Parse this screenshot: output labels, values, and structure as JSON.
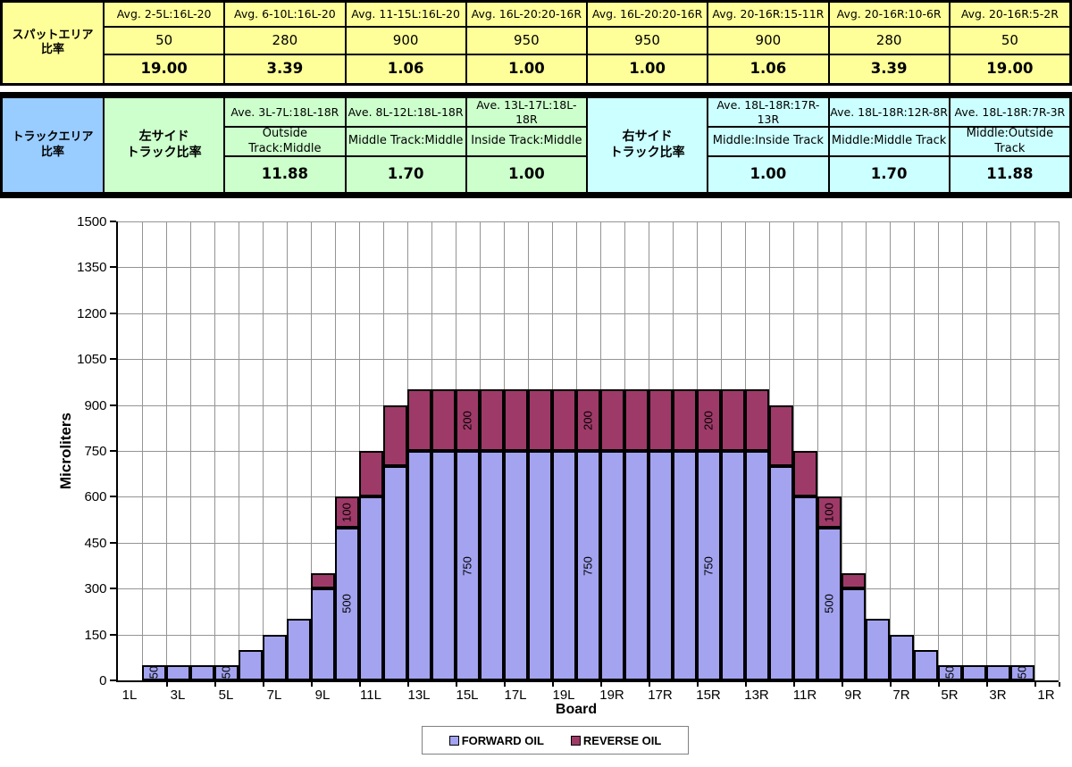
{
  "spat_table": {
    "header_line1": "スパットエリア",
    "header_line2": "比率",
    "columns": [
      {
        "header": "Avg. 2-5L:16L-20",
        "value": "50",
        "ratio": "19.00"
      },
      {
        "header": "Avg. 6-10L:16L-20",
        "value": "280",
        "ratio": "3.39"
      },
      {
        "header": "Avg. 11-15L:16L-20",
        "value": "900",
        "ratio": "1.06"
      },
      {
        "header": "Avg. 16L-20:20-16R",
        "value": "950",
        "ratio": "1.00"
      },
      {
        "header": "Avg. 16L-20:20-16R",
        "value": "950",
        "ratio": "1.00"
      },
      {
        "header": "Avg. 20-16R:15-11R",
        "value": "900",
        "ratio": "1.06"
      },
      {
        "header": "Avg. 20-16R:10-6R",
        "value": "280",
        "ratio": "3.39"
      },
      {
        "header": "Avg. 20-16R:5-2R",
        "value": "50",
        "ratio": "19.00"
      }
    ],
    "bg_color": "#FFFF99"
  },
  "track_table": {
    "header_line1": "トラックエリア",
    "header_line2": "比率",
    "left_group_line1": "左サイド",
    "left_group_line2": "トラック比率",
    "right_group_line1": "右サイド",
    "right_group_line2": "トラック比率",
    "left_columns": [
      {
        "header": "Ave. 3L-7L:18L-18R",
        "label": "Outside Track:Middle",
        "ratio": "11.88"
      },
      {
        "header": "Ave. 8L-12L:18L-18R",
        "label": "Middle Track:Middle",
        "ratio": "1.70"
      },
      {
        "header": "Ave. 13L-17L:18L-18R",
        "label": "Inside Track:Middle",
        "ratio": "1.00"
      }
    ],
    "right_columns": [
      {
        "header": "Ave. 18L-18R:17R-13R",
        "label": "Middle:Inside Track",
        "ratio": "1.00"
      },
      {
        "header": "Ave. 18L-18R:12R-8R",
        "label": "Middle:Middle Track",
        "ratio": "1.70"
      },
      {
        "header": "Ave. 18L-18R:7R-3R",
        "label": "Middle:Outside Track",
        "ratio": "11.88"
      }
    ],
    "header_bg": "#99CCFF",
    "left_bg": "#CCFFCC",
    "right_bg": "#CCFFFF"
  },
  "chart_data": {
    "type": "bar",
    "stacked": true,
    "xlabel": "Board",
    "ylabel": "Microliters",
    "ylim": [
      0,
      1500
    ],
    "ytick_interval": 150,
    "yticks": [
      0,
      150,
      300,
      450,
      600,
      750,
      900,
      1050,
      1200,
      1350,
      1500
    ],
    "grid": "both",
    "legend_position": "bottom",
    "categories": [
      "1L",
      "2L",
      "3L",
      "4L",
      "5L",
      "6L",
      "7L",
      "8L",
      "9L",
      "10L",
      "11L",
      "12L",
      "13L",
      "14L",
      "15L",
      "16L",
      "17L",
      "18L",
      "19L",
      "20",
      "19R",
      "18R",
      "17R",
      "16R",
      "15R",
      "14R",
      "13R",
      "12R",
      "11R",
      "10R",
      "9R",
      "8R",
      "7R",
      "6R",
      "5R",
      "4R",
      "3R",
      "2R",
      "1R"
    ],
    "xtick_labels": [
      "1L",
      "3L",
      "5L",
      "7L",
      "9L",
      "11L",
      "13L",
      "15L",
      "17L",
      "19L",
      "19R",
      "17R",
      "15R",
      "13R",
      "11R",
      "9R",
      "7R",
      "5R",
      "3R",
      "1R"
    ],
    "series": [
      {
        "name": "FORWARD OIL",
        "key": "forward",
        "color": "#A3A3F0",
        "values": [
          0,
          50,
          50,
          50,
          50,
          100,
          150,
          200,
          300,
          500,
          600,
          700,
          750,
          750,
          750,
          750,
          750,
          750,
          750,
          750,
          750,
          750,
          750,
          750,
          750,
          750,
          750,
          700,
          600,
          500,
          300,
          200,
          150,
          100,
          50,
          50,
          50,
          50,
          0
        ]
      },
      {
        "name": "REVERSE OIL",
        "key": "reverse",
        "color": "#9E3A68",
        "values": [
          0,
          0,
          0,
          0,
          0,
          0,
          0,
          0,
          50,
          100,
          150,
          200,
          200,
          200,
          200,
          200,
          200,
          200,
          200,
          200,
          200,
          200,
          200,
          200,
          200,
          200,
          200,
          200,
          150,
          100,
          50,
          0,
          0,
          0,
          0,
          0,
          0,
          0,
          0
        ]
      }
    ],
    "bar_labels": [
      {
        "board": "2L",
        "series": "forward",
        "text": "50"
      },
      {
        "board": "5L",
        "series": "forward",
        "text": "50"
      },
      {
        "board": "10L",
        "series": "forward",
        "text": "500"
      },
      {
        "board": "10L",
        "series": "reverse",
        "text": "100"
      },
      {
        "board": "15L",
        "series": "forward",
        "text": "750"
      },
      {
        "board": "15L",
        "series": "reverse",
        "text": "200"
      },
      {
        "board": "20",
        "series": "forward",
        "text": "750"
      },
      {
        "board": "20",
        "series": "reverse",
        "text": "200"
      },
      {
        "board": "15R",
        "series": "forward",
        "text": "750"
      },
      {
        "board": "15R",
        "series": "reverse",
        "text": "200"
      },
      {
        "board": "10R",
        "series": "forward",
        "text": "500"
      },
      {
        "board": "10R",
        "series": "reverse",
        "text": "100"
      },
      {
        "board": "5R",
        "series": "forward",
        "text": "50"
      },
      {
        "board": "2R",
        "series": "forward",
        "text": "50"
      }
    ]
  }
}
